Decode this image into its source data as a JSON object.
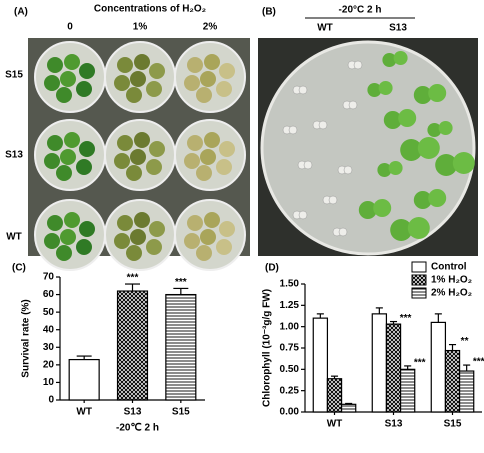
{
  "panels": {
    "A": {
      "label": "(A)",
      "heading": "Concentrations of H₂O₂",
      "columns": [
        "0",
        "1%",
        "2%"
      ],
      "rows": [
        "S15",
        "S13",
        "WT"
      ]
    },
    "B": {
      "label": "(B)",
      "heading": "-20°C 2 h",
      "columns": [
        "WT",
        "S13"
      ]
    }
  },
  "chart_data": [
    {
      "type": "bar",
      "title": "(C)",
      "y_label": "Survival rate (%)",
      "x_label": "-20℃ 2 h",
      "categories": [
        "WT",
        "S13",
        "S15"
      ],
      "values": [
        23,
        62,
        60
      ],
      "errors": [
        2,
        4,
        3.5
      ],
      "value_annotations": [
        null,
        "***",
        "***"
      ],
      "colors": [
        "#ffffff",
        "#ffffff",
        "#ffffff"
      ],
      "patterns": [
        "none",
        "crosshatch",
        "hlines"
      ],
      "ylim": [
        0,
        70
      ],
      "yticks": [
        0,
        10,
        20,
        30,
        40,
        50,
        60,
        70
      ]
    },
    {
      "type": "bar",
      "title": "(D)",
      "y_label": "Chlorophyll (10⁻³g/g FW)",
      "categories": [
        "WT",
        "S13",
        "S15"
      ],
      "legend": "upper right",
      "series": [
        {
          "name": "Control",
          "color": "#ffffff",
          "pattern": "none",
          "values": [
            1.1,
            1.15,
            1.05
          ],
          "errors": [
            0.05,
            0.07,
            0.1
          ],
          "value_annotations": [
            null,
            null,
            null
          ]
        },
        {
          "name": "1% H₂O₂",
          "color": "#ffffff",
          "pattern": "crosshatch",
          "values": [
            0.39,
            1.03,
            0.72
          ],
          "errors": [
            0.03,
            0.03,
            0.07
          ],
          "value_annotations": [
            null,
            "***",
            "**"
          ]
        },
        {
          "name": "2% H₂O₂",
          "color": "#ffffff",
          "pattern": "hlines",
          "values": [
            0.09,
            0.5,
            0.48
          ],
          "errors": [
            0.01,
            0.04,
            0.07
          ],
          "value_annotations": [
            null,
            "***",
            "***"
          ]
        }
      ],
      "ylim": [
        0,
        1.5
      ],
      "yticks": [
        {
          "value": 0,
          "label": "0.00"
        },
        0.25,
        {
          "value": 0.5,
          "label": "0.50"
        },
        0.75,
        {
          "value": 1,
          "label": "1.00"
        },
        1.25,
        {
          "value": 1.5,
          "label": "1.50"
        }
      ]
    }
  ]
}
